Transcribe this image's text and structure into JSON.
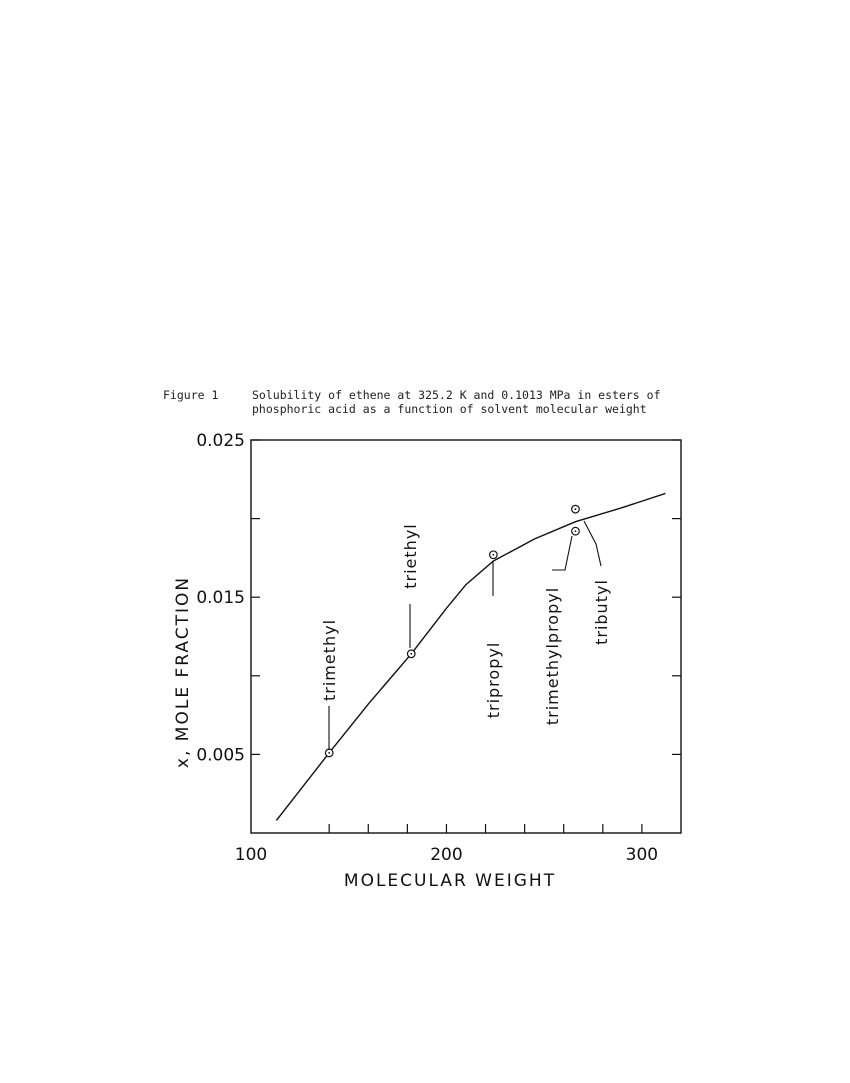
{
  "figure": {
    "label": "Figure 1",
    "caption_line1": "Solubility of ethene at 325.2 K and 0.1013 MPa in esters of",
    "caption_line2": "phosphoric acid as a function of solvent molecular weight"
  },
  "chart_data": {
    "type": "scatter",
    "title": "",
    "xlabel": "MOLECULAR WEIGHT",
    "ylabel": "x, MOLE  FRACTION",
    "xlim": [
      100,
      320
    ],
    "ylim": [
      0.0,
      0.025
    ],
    "x_ticks": [
      100,
      200,
      300
    ],
    "x_tick_labels": [
      "100",
      "200",
      "300"
    ],
    "y_ticks": [
      0.005,
      0.015,
      0.025
    ],
    "y_tick_labels": [
      "0.005",
      "0.015",
      "0.025"
    ],
    "grid": false,
    "legend": "none",
    "points": [
      {
        "name": "trimethyl",
        "x": 140,
        "y": 0.0051
      },
      {
        "name": "triethyl",
        "x": 182,
        "y": 0.0114
      },
      {
        "name": "tripropyl",
        "x": 224,
        "y": 0.0177
      },
      {
        "name": "trimethylpropyl",
        "x": 266,
        "y": 0.0192
      },
      {
        "name": "tributyl",
        "x": 266,
        "y": 0.0206
      }
    ],
    "curve": {
      "x": [
        113,
        140,
        160,
        182,
        200,
        210,
        224,
        245,
        266,
        290,
        312
      ],
      "y": [
        0.0008,
        0.0051,
        0.0082,
        0.0114,
        0.0143,
        0.0158,
        0.0173,
        0.0187,
        0.0198,
        0.0207,
        0.0216
      ]
    }
  }
}
